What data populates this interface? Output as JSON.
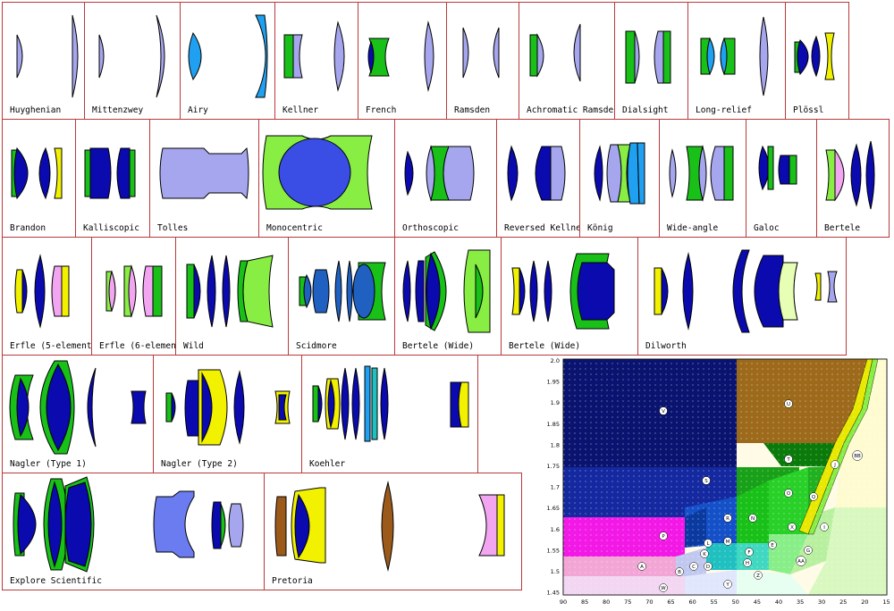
{
  "diagrams": {
    "huyghenian": "Huyghenian",
    "mittenzwey": "Mittenzwey",
    "airy": "Airy",
    "kellner": "Kellner",
    "french": "French",
    "ramsden": "Ramsden",
    "achromatic_ramsden": "Achromatic Ramsden",
    "dialsight": "Dialsight",
    "long_relief": "Long-relief",
    "plossl": "Plössl",
    "brandon": "Brandon",
    "kalliscopic": "Kalliscopic",
    "tolles": "Tolles",
    "monocentric": "Monocentric",
    "orthoscopic": "Orthoscopic",
    "reversed_kellner": "Reversed Kellner",
    "konig": "König",
    "wide_angle": "Wide-angle",
    "galoc": "Galoc",
    "bertele": "Bertele",
    "erfle5": "Erfle (5-element)",
    "erfle6": "Erfle (6-element)",
    "wild": "Wild",
    "scidmore": "Scidmore",
    "bertele_wide_1": "Bertele (Wide)",
    "bertele_wide_2": "Bertele (Wide)",
    "dilworth": "Dilworth",
    "nagler1": "Nagler (Type 1)",
    "nagler2": "Nagler (Type 2)",
    "koehler": "Koehler",
    "explore_scientific": "Explore Scientific",
    "pretoria": "Pretoria"
  },
  "glass_chart": {
    "y_ticks": [
      "2.0",
      "1.95",
      "1.9",
      "1.85",
      "1.8",
      "1.75",
      "1.7",
      "1.65",
      "1.6",
      "1.55",
      "1.5",
      "1.45"
    ],
    "x_ticks": [
      "90",
      "85",
      "80",
      "75",
      "70",
      "65",
      "60",
      "55",
      "50",
      "45",
      "40",
      "35",
      "30",
      "25",
      "20",
      "15"
    ],
    "region_labels": [
      "V",
      "U",
      "S",
      "T",
      "BB",
      "O",
      "Q",
      "P",
      "N",
      "J",
      "R",
      "X",
      "L",
      "M",
      "K",
      "C",
      "D",
      "A",
      "F",
      "E",
      "B",
      "Y",
      "W",
      "Z",
      "AA",
      "H",
      "G",
      "I"
    ]
  },
  "colors": {
    "light_blue": "#a6a6ee",
    "dark_blue": "#0a0aae",
    "green": "#18c018",
    "light_green": "#88ee44",
    "yellow": "#f2f200",
    "pink": "#f2a6f2",
    "brown": "#9c5a1a",
    "sky": "#20a0f0"
  }
}
